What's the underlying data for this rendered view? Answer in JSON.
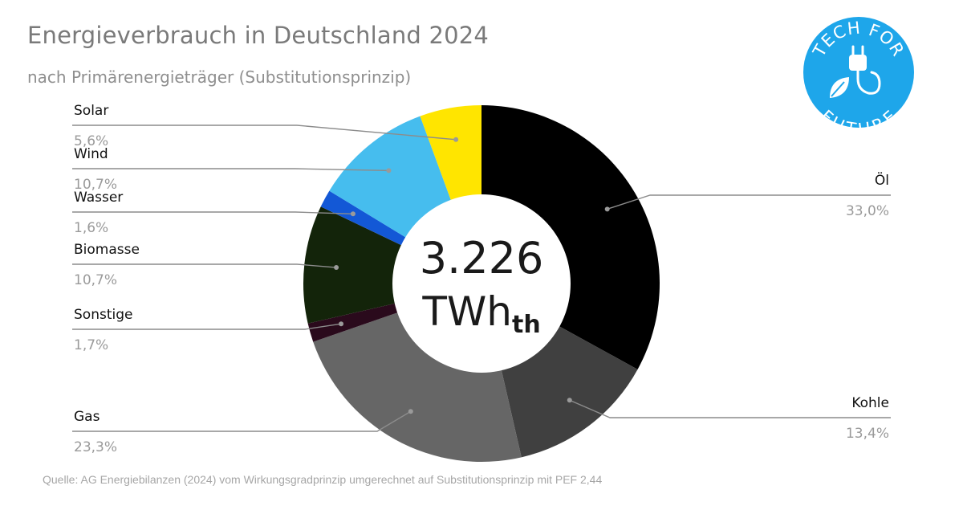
{
  "header": {
    "title": "Energieverbrauch in Deutschland 2024",
    "subtitle": "nach Primärenergieträger (Substitutionsprinzip)"
  },
  "center": {
    "value": "3.226",
    "unit": "TWh",
    "unit_sub": "th"
  },
  "logo": {
    "top_text": "TECH FOR",
    "bottom_text": "FUTURE",
    "color": "#1ea6ea"
  },
  "source": "Quelle: AG Energiebilanzen (2024) vom Wirkungsgradprinzip umgerechnet auf Substitutionsprinzip mit PEF 2,44",
  "chart_data": {
    "type": "pie",
    "variant": "donut",
    "title": "Energieverbrauch in Deutschland 2024",
    "subtitle": "nach Primärenergieträger (Substitutionsprinzip)",
    "total": "3.226 TWh_th",
    "slices": [
      {
        "name": "Öl",
        "value": 33.0,
        "label": "33,0%",
        "color": "#000000",
        "side": "right"
      },
      {
        "name": "Kohle",
        "value": 13.4,
        "label": "13,4%",
        "color": "#404040",
        "side": "right"
      },
      {
        "name": "Gas",
        "value": 23.3,
        "label": "23,3%",
        "color": "#666666",
        "side": "left"
      },
      {
        "name": "Sonstige",
        "value": 1.7,
        "label": "1,7%",
        "color": "#2a0a1c",
        "side": "left"
      },
      {
        "name": "Biomasse",
        "value": 10.7,
        "label": "10,7%",
        "color": "#13240a",
        "side": "left"
      },
      {
        "name": "Wasser",
        "value": 1.6,
        "label": "1,6%",
        "color": "#1358d6",
        "side": "left"
      },
      {
        "name": "Wind",
        "value": 10.7,
        "label": "10,7%",
        "color": "#46bdee",
        "side": "left"
      },
      {
        "name": "Solar",
        "value": 5.6,
        "label": "5,6%",
        "color": "#ffe500",
        "side": "left"
      }
    ],
    "start": "top",
    "direction": "clockwise"
  }
}
